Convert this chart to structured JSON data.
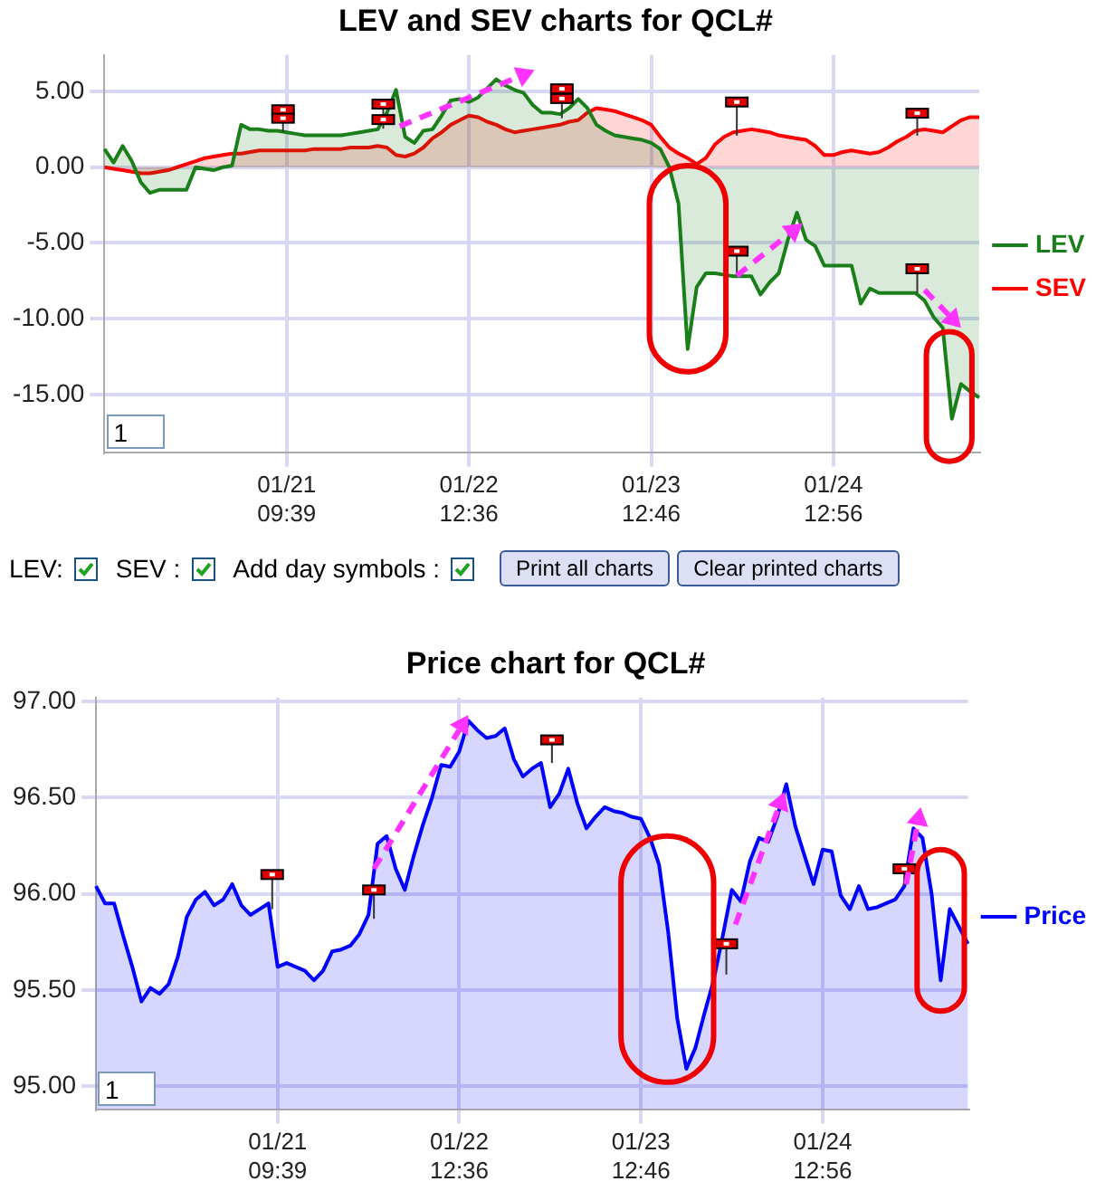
{
  "chart_data": [
    {
      "type": "area",
      "title": "LEV and SEV charts for QCL#",
      "categories": [
        null,
        null,
        null,
        null,
        null,
        null,
        null,
        null,
        null,
        null,
        null,
        null,
        null,
        null,
        null,
        null,
        null,
        null,
        null,
        null,
        "01/21 09:39",
        null,
        null,
        null,
        null,
        null,
        null,
        null,
        null,
        null,
        null,
        null,
        null,
        null,
        null,
        null,
        null,
        null,
        null,
        null,
        "01/22 12:36",
        null,
        null,
        null,
        null,
        null,
        null,
        null,
        null,
        null,
        null,
        null,
        null,
        null,
        null,
        null,
        null,
        null,
        null,
        null,
        "01/23 12:46",
        null,
        null,
        null,
        null,
        null,
        null,
        null,
        null,
        null,
        null,
        null,
        null,
        null,
        null,
        null,
        null,
        null,
        null,
        null,
        "01/24 12:56",
        null,
        null,
        null,
        null,
        null,
        null,
        null,
        null,
        null,
        null,
        null,
        null,
        null,
        null,
        null,
        null
      ],
      "ylim": [
        -18.8,
        7.4
      ],
      "yticks": [
        {
          "value": -15,
          "label": "-15.00"
        },
        {
          "value": -10,
          "label": "-10.00"
        },
        {
          "value": -5,
          "label": "-5.00"
        },
        {
          "value": 0,
          "label": "0.00"
        },
        {
          "value": 5,
          "label": "5.00"
        }
      ],
      "grid": true,
      "legend": "right",
      "annotations": [
        "1",
        "LEV:",
        "SEV :",
        "Add day symbols :",
        "Print all charts",
        "Clear printed charts"
      ],
      "series": [
        {
          "name": "LEV",
          "color": "#1a7f1a",
          "values": [
            1.2,
            0.3,
            1.4,
            0.4,
            -1.0,
            -1.7,
            -1.5,
            -1.5,
            -1.5,
            -1.5,
            0.0,
            -0.1,
            -0.2,
            0.0,
            0.1,
            2.8,
            2.5,
            2.5,
            2.4,
            2.4,
            2.3,
            2.2,
            2.1,
            2.1,
            2.1,
            2.1,
            2.1,
            2.2,
            2.3,
            2.4,
            2.5,
            3.6,
            5.1,
            2.0,
            1.6,
            2.4,
            2.5,
            3.4,
            4.4,
            4.5,
            4.3,
            4.6,
            5.2,
            5.8,
            5.4,
            5.1,
            4.9,
            4.1,
            3.6,
            3.6,
            3.5,
            3.9,
            4.5,
            3.9,
            2.8,
            2.4,
            2.1,
            2.0,
            1.9,
            1.8,
            1.6,
            1.2,
            0.0,
            -2.4,
            -12.0,
            -7.9,
            -7.0,
            -7.0,
            -7.1,
            -7.2,
            -7.2,
            -7.2,
            -8.4,
            -7.6,
            -7.0,
            -4.8,
            -3.0,
            -4.8,
            -5.2,
            -6.5,
            -6.5,
            -6.5,
            -6.5,
            -9.0,
            -8.0,
            -8.3,
            -8.3,
            -8.3,
            -8.3,
            -8.3,
            -8.8,
            -9.9,
            -10.6,
            -16.6,
            -14.3,
            -14.8,
            -15.2
          ]
        },
        {
          "name": "SEV",
          "color": "#ff0000",
          "values": [
            0.0,
            -0.1,
            -0.2,
            -0.3,
            -0.4,
            -0.4,
            -0.3,
            -0.2,
            0.0,
            0.2,
            0.4,
            0.6,
            0.7,
            0.8,
            0.9,
            0.9,
            1.0,
            1.1,
            1.1,
            1.1,
            1.1,
            1.1,
            1.1,
            1.2,
            1.2,
            1.2,
            1.2,
            1.3,
            1.3,
            1.3,
            1.4,
            1.3,
            0.8,
            0.7,
            0.9,
            1.3,
            1.9,
            2.3,
            2.8,
            3.1,
            3.4,
            3.3,
            3.0,
            2.8,
            2.5,
            2.3,
            2.4,
            2.5,
            2.6,
            2.7,
            2.8,
            3.0,
            3.1,
            3.6,
            3.9,
            3.8,
            3.7,
            3.5,
            3.3,
            3.1,
            2.8,
            2.0,
            1.3,
            0.9,
            0.6,
            0.2,
            0.6,
            1.5,
            2.0,
            2.3,
            2.4,
            2.5,
            2.4,
            2.3,
            2.1,
            2.0,
            1.9,
            1.8,
            1.4,
            0.8,
            0.8,
            1.0,
            1.1,
            1.0,
            0.9,
            1.0,
            1.3,
            1.7,
            2.0,
            2.4,
            2.5,
            2.4,
            2.3,
            2.7,
            3.1,
            3.3,
            3.3
          ]
        }
      ]
    },
    {
      "type": "area",
      "title": "Price chart for QCL#",
      "categories": [
        null,
        null,
        null,
        null,
        null,
        null,
        null,
        null,
        null,
        null,
        null,
        null,
        null,
        null,
        null,
        null,
        null,
        null,
        null,
        null,
        "01/21 09:39",
        null,
        null,
        null,
        null,
        null,
        null,
        null,
        null,
        null,
        null,
        null,
        null,
        null,
        null,
        null,
        null,
        null,
        null,
        null,
        "01/22 12:36",
        null,
        null,
        null,
        null,
        null,
        null,
        null,
        null,
        null,
        null,
        null,
        null,
        null,
        null,
        null,
        null,
        null,
        null,
        null,
        "01/23 12:46",
        null,
        null,
        null,
        null,
        null,
        null,
        null,
        null,
        null,
        null,
        null,
        null,
        null,
        null,
        null,
        null,
        null,
        null,
        null,
        "01/24 12:56",
        null,
        null,
        null,
        null,
        null,
        null,
        null,
        null,
        null,
        null,
        null,
        null,
        null,
        null,
        null,
        null
      ],
      "ylim": [
        94.88,
        97.02
      ],
      "yticks": [
        {
          "value": 95,
          "label": "95.00"
        },
        {
          "value": 95.5,
          "label": "95.50"
        },
        {
          "value": 96,
          "label": "96.00"
        },
        {
          "value": 96.5,
          "label": "96.50"
        },
        {
          "value": 97,
          "label": "97.00"
        }
      ],
      "grid": true,
      "legend": "right",
      "annotations": [
        "1"
      ],
      "series": [
        {
          "name": "Price",
          "color": "#0000ff",
          "values": [
            96.04,
            95.95,
            95.95,
            95.78,
            95.62,
            95.44,
            95.51,
            95.48,
            95.53,
            95.67,
            95.88,
            95.97,
            96.01,
            95.94,
            95.97,
            96.05,
            95.94,
            95.89,
            95.92,
            95.95,
            95.62,
            95.64,
            95.62,
            95.6,
            95.55,
            95.6,
            95.7,
            95.71,
            95.73,
            95.79,
            95.89,
            96.26,
            96.3,
            96.13,
            96.02,
            96.2,
            96.36,
            96.5,
            96.67,
            96.66,
            96.74,
            96.9,
            96.85,
            96.81,
            96.82,
            96.86,
            96.7,
            96.61,
            96.65,
            96.68,
            96.45,
            96.52,
            96.65,
            96.47,
            96.34,
            96.4,
            96.45,
            96.43,
            96.42,
            96.4,
            96.39,
            96.29,
            96.15,
            95.8,
            95.35,
            95.09,
            95.2,
            95.38,
            95.55,
            95.78,
            96.02,
            95.96,
            96.17,
            96.29,
            96.27,
            96.4,
            96.57,
            96.35,
            96.2,
            96.05,
            96.23,
            96.22,
            95.99,
            95.92,
            96.04,
            95.92,
            95.93,
            95.95,
            95.97,
            96.04,
            96.34,
            96.29,
            96.0,
            95.55,
            95.92,
            95.83,
            95.74
          ]
        }
      ]
    }
  ]
}
